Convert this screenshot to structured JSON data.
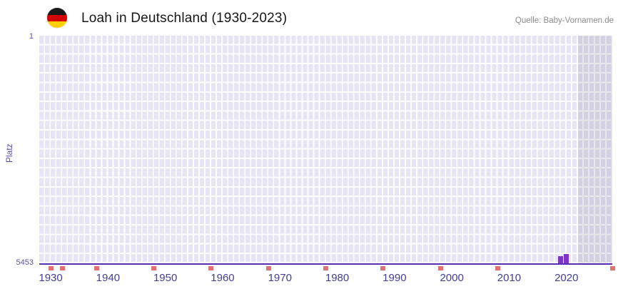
{
  "header": {
    "flag_icon": "german-flag-icon",
    "title": "Loah in Deutschland (1930-2023)",
    "source": "Quelle: Baby-Vornamen.de"
  },
  "chart_data": {
    "type": "bar",
    "title": "Loah in Deutschland (1930-2023)",
    "xlabel": "",
    "ylabel": "Platz",
    "grid": true,
    "legend": false,
    "y_axis": {
      "min": 1,
      "max": 5453,
      "min_label": "1",
      "max_label": "5453",
      "inverted": true
    },
    "x_axis": {
      "range": [
        1928,
        2028
      ],
      "ticks": [
        1930,
        1940,
        1950,
        1960,
        1970,
        1980,
        1990,
        2000,
        2010,
        2020
      ]
    },
    "series": [
      {
        "name": "Platz von Loah",
        "points": [
          {
            "year": 2019,
            "rank": 5280
          },
          {
            "year": 2020,
            "rank": 5230
          }
        ]
      }
    ],
    "no_data_marks_years": [
      1930,
      1932,
      1938,
      1948,
      1958,
      1968,
      1978,
      1988,
      1998,
      2008,
      2028
    ],
    "future_shaded_region": {
      "from": 2022,
      "to": 2028
    }
  },
  "colors": {
    "bar": "#7d35c4",
    "grid_cell": "#e7e4f4",
    "axis_line": "#5a2db2",
    "tick_text": "#423f8f",
    "y_text": "#5b4fa8",
    "no_data_mark": "#e4716f",
    "shaded_overlay": "rgba(106,106,132,0.16)",
    "source_text": "#8b8b8b",
    "flag_black": "#1a1a1a",
    "flag_red": "#d40000",
    "flag_gold": "#ffcf00"
  }
}
